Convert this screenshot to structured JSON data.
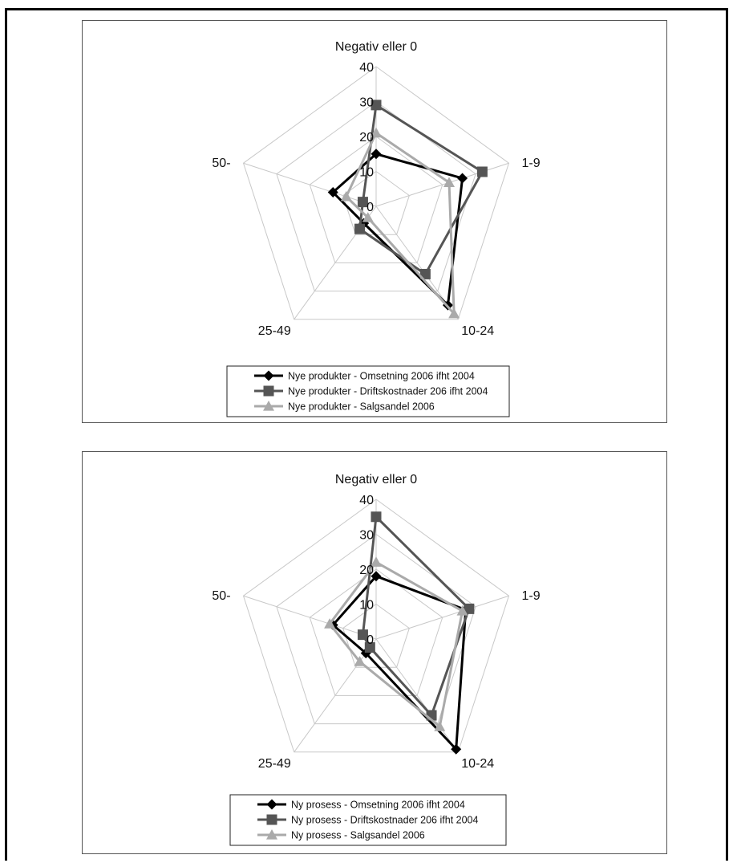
{
  "colors": {
    "series_1": "#000000",
    "series_2": "#555555",
    "series_3": "#aaaaaa",
    "grid": "#c8c8c8"
  },
  "chart_data": [
    {
      "type": "radar",
      "categories": [
        "Negativ eller 0",
        "1-9",
        "10-24",
        "25-49",
        "50-"
      ],
      "rlim": [
        0,
        40
      ],
      "ticks": [
        0,
        10,
        20,
        30,
        40
      ],
      "grid": true,
      "legend_position": "bottom",
      "series": [
        {
          "name": "Nye produkter - Omsetning 2006 ifht 2004",
          "marker": "diamond",
          "values": [
            15,
            26,
            35,
            6,
            13
          ]
        },
        {
          "name": "Nye produkter - Driftskostnader 206 ifht 2004",
          "marker": "square",
          "values": [
            29,
            32,
            24,
            8,
            4
          ]
        },
        {
          "name": "Nye produkter - Salgsandel 2006",
          "marker": "triangle",
          "values": [
            21,
            22,
            38,
            4,
            9
          ]
        }
      ]
    },
    {
      "type": "radar",
      "categories": [
        "Negativ eller 0",
        "1-9",
        "10-24",
        "25-49",
        "50-"
      ],
      "rlim": [
        0,
        40
      ],
      "ticks": [
        0,
        10,
        20,
        30,
        40
      ],
      "grid": true,
      "legend_position": "bottom",
      "series": [
        {
          "name": "Ny prosess - Omsetning 2006 ifht 2004",
          "marker": "diamond",
          "values": [
            18,
            27,
            39,
            5,
            13
          ]
        },
        {
          "name": "Ny prosess - Driftskostnader 206 ifht 2004",
          "marker": "square",
          "values": [
            35,
            28,
            27,
            3,
            4
          ]
        },
        {
          "name": "Ny prosess - Salgsandel 2006",
          "marker": "triangle",
          "values": [
            22,
            26,
            31,
            8,
            14
          ]
        }
      ]
    }
  ]
}
